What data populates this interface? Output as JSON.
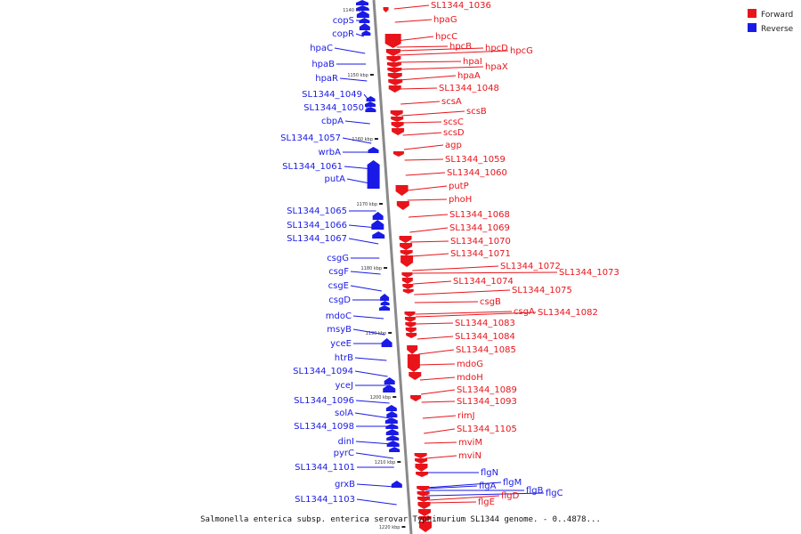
{
  "caption": "Salmonella enterica subsp. enterica serovar Typhimurium SL1344 genome. - 0..4878...",
  "legend": [
    {
      "label": "Forward",
      "color": "#e8141a"
    },
    {
      "label": "Reverse",
      "color": "#1a1ae6"
    }
  ],
  "colors": {
    "forward": "#e8141a",
    "reverse": "#1a1ae6",
    "axis": "#8a8a8a"
  },
  "ticks": [
    {
      "label": "1140 kbp",
      "kbp": 1140
    },
    {
      "label": "1150 kbp",
      "kbp": 1150
    },
    {
      "label": "1160 kbp",
      "kbp": 1160
    },
    {
      "label": "1170 kbp",
      "kbp": 1170
    },
    {
      "label": "1180 kbp",
      "kbp": 1180
    },
    {
      "label": "1190 kbp",
      "kbp": 1190
    },
    {
      "label": "1200 kbp",
      "kbp": 1200
    },
    {
      "label": "1210 kbp",
      "kbp": 1210
    },
    {
      "label": "1220 kbp",
      "kbp": 1220
    }
  ],
  "forward_genes": [
    "SL1344_1036",
    "hpaG",
    "hpcC",
    "hpcB",
    "hpcD",
    "hpcG",
    "hpaI",
    "hpaX",
    "hpaA",
    "SL1344_1048",
    "scsA",
    "scsB",
    "scsC",
    "scsD",
    "agp",
    "SL1344_1059",
    "SL1344_1060",
    "putP",
    "phoH",
    "SL1344_1068",
    "SL1344_1069",
    "SL1344_1070",
    "SL1344_1071",
    "SL1344_1072",
    "SL1344_1073",
    "SL1344_1074",
    "SL1344_1075",
    "csgB",
    "csgA",
    "SL1344_1082",
    "SL1344_1083",
    "SL1344_1084",
    "SL1344_1085",
    "mdoG",
    "mdoH",
    "SL1344_1089",
    "SL1344_1093",
    "rimJ",
    "SL1344_1105",
    "mviM",
    "mviN",
    "flgD",
    "flgE"
  ],
  "reverse_genes": [
    "copS",
    "copR",
    "hpaC",
    "hpaB",
    "hpaR",
    "SL1344_1049",
    "SL1344_1050",
    "cbpA",
    "SL1344_1057",
    "wrbA",
    "SL1344_1061",
    "putA",
    "SL1344_1065",
    "SL1344_1066",
    "SL1344_1067",
    "csgG",
    "csgF",
    "csgE",
    "csgD",
    "mdoC",
    "msyB",
    "yceE",
    "htrB",
    "SL1344_1094",
    "yceJ",
    "SL1344_1096",
    "solA",
    "SL1344_1098",
    "dinI",
    "pyrC",
    "SL1344_1101",
    "grxB",
    "SL1344_1103",
    "flgN",
    "flgA",
    "flgM",
    "flgB",
    "flgC"
  ]
}
